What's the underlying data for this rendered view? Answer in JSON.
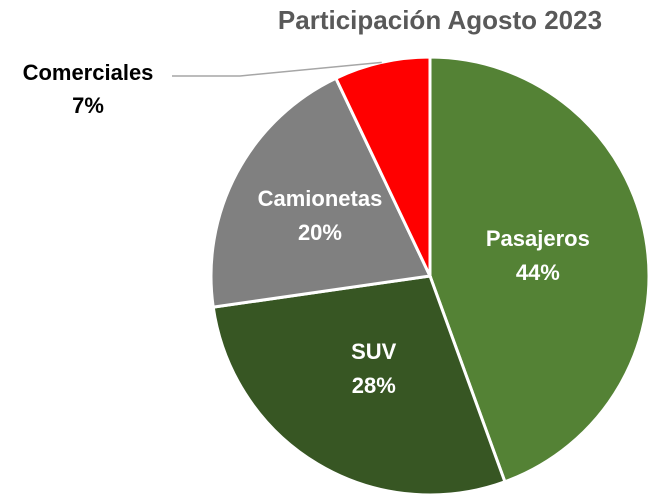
{
  "chart_data": {
    "type": "pie",
    "title": "Participación Agosto 2023",
    "categories": [
      "Pasajeros",
      "SUV",
      "Camionetas",
      "Comerciales"
    ],
    "values": [
      44,
      28,
      20,
      7
    ],
    "value_labels": [
      "44%",
      "28%",
      "20%",
      "7%"
    ],
    "colors": [
      "#548235",
      "#375623",
      "#808080",
      "#ff0000"
    ]
  }
}
